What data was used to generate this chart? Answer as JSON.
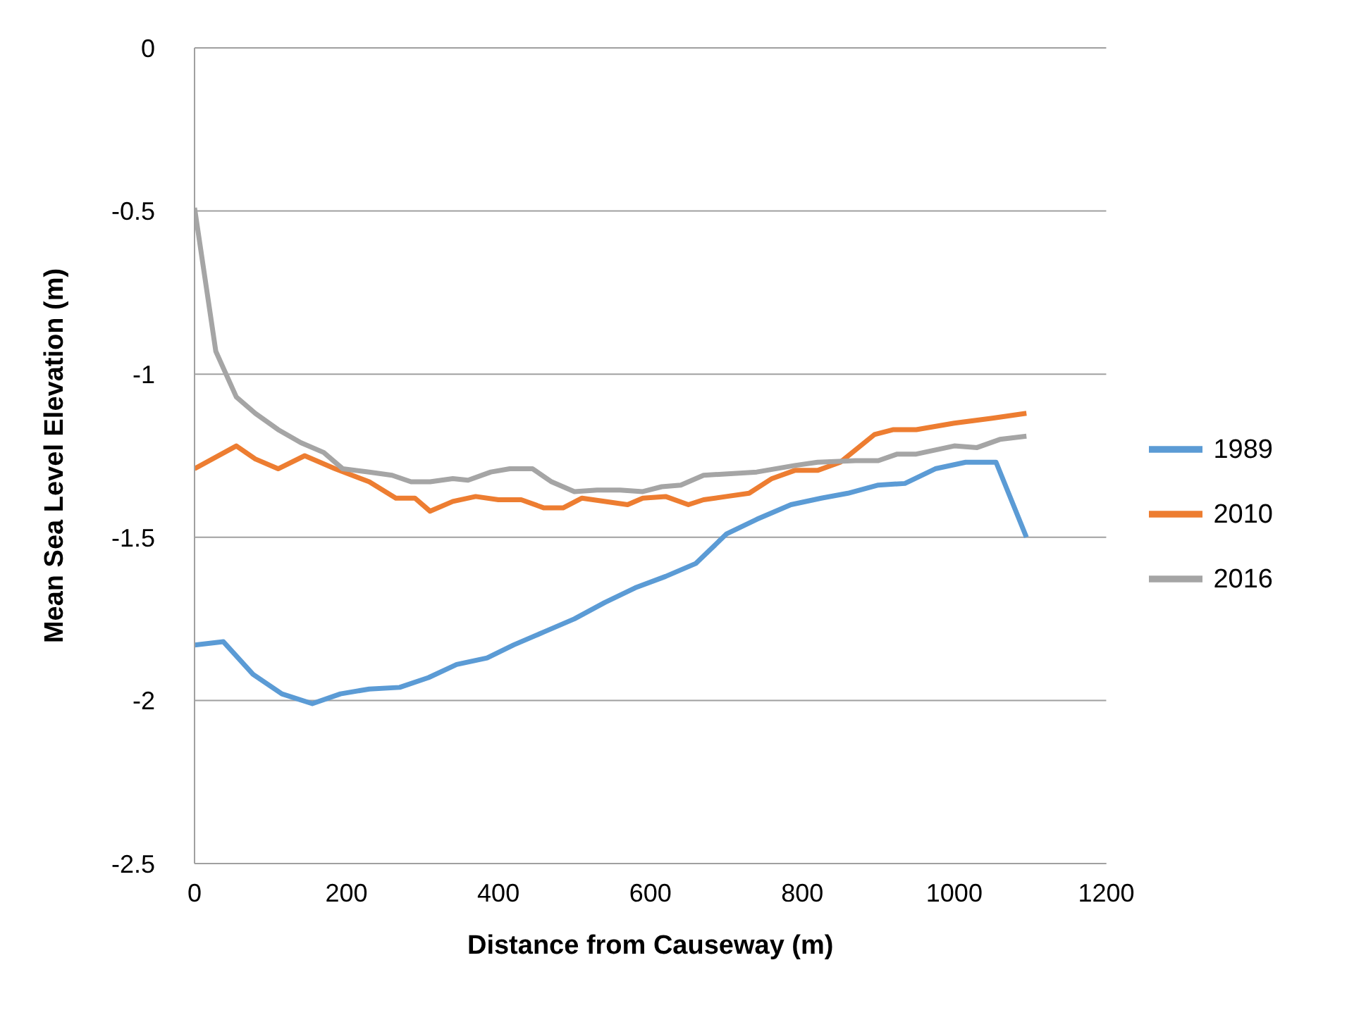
{
  "chart_data": {
    "type": "line",
    "xlabel": "Distance from Causeway (m)",
    "ylabel": "Mean Sea Level Elevation (m)",
    "xlim": [
      0,
      1200
    ],
    "xticks": [
      0,
      200,
      400,
      600,
      800,
      1000,
      1200
    ],
    "ylim": [
      -2.5,
      0
    ],
    "yticks": [
      -2.5,
      -2,
      -1.5,
      -1,
      -0.5,
      0
    ],
    "grid": "y",
    "legend": "right",
    "marker": "none",
    "line_style": "solid",
    "series": [
      {
        "name": "1989",
        "color": "#5b9bd5",
        "x": [
          0,
          38,
          77,
          115,
          155,
          192,
          230,
          270,
          308,
          345,
          385,
          420,
          460,
          500,
          540,
          580,
          620,
          660,
          700,
          740,
          785,
          825,
          860,
          900,
          935,
          975,
          1015,
          1055,
          1095
        ],
        "values": [
          -1.83,
          -1.82,
          -1.92,
          -1.98,
          -2.01,
          -1.98,
          -1.965,
          -1.96,
          -1.93,
          -1.89,
          -1.87,
          -1.83,
          -1.79,
          -1.75,
          -1.7,
          -1.655,
          -1.62,
          -1.58,
          -1.49,
          -1.445,
          -1.4,
          -1.38,
          -1.365,
          -1.34,
          -1.335,
          -1.29,
          -1.27,
          -1.27,
          -1.5
        ]
      },
      {
        "name": "2010",
        "color": "#ed7d31",
        "x": [
          0,
          55,
          80,
          110,
          145,
          185,
          230,
          265,
          290,
          310,
          340,
          370,
          400,
          430,
          460,
          485,
          510,
          570,
          590,
          620,
          650,
          670,
          700,
          730,
          760,
          790,
          820,
          850,
          895,
          920,
          950,
          1000,
          1050,
          1095
        ],
        "values": [
          -1.29,
          -1.22,
          -1.26,
          -1.29,
          -1.25,
          -1.29,
          -1.33,
          -1.38,
          -1.38,
          -1.42,
          -1.39,
          -1.375,
          -1.385,
          -1.385,
          -1.41,
          -1.41,
          -1.38,
          -1.4,
          -1.38,
          -1.375,
          -1.4,
          -1.385,
          -1.375,
          -1.365,
          -1.32,
          -1.295,
          -1.295,
          -1.27,
          -1.185,
          -1.17,
          -1.17,
          -1.15,
          -1.135,
          -1.12
        ]
      },
      {
        "name": "2016",
        "color": "#a5a5a5",
        "x": [
          0,
          28,
          55,
          80,
          110,
          140,
          170,
          195,
          230,
          260,
          285,
          310,
          340,
          360,
          390,
          415,
          445,
          470,
          500,
          530,
          560,
          590,
          615,
          640,
          670,
          740,
          790,
          820,
          870,
          900,
          925,
          950,
          1000,
          1030,
          1060,
          1095
        ],
        "values": [
          -0.49,
          -0.93,
          -1.07,
          -1.12,
          -1.17,
          -1.21,
          -1.24,
          -1.29,
          -1.3,
          -1.31,
          -1.33,
          -1.33,
          -1.32,
          -1.325,
          -1.3,
          -1.29,
          -1.29,
          -1.33,
          -1.36,
          -1.355,
          -1.355,
          -1.36,
          -1.345,
          -1.34,
          -1.31,
          -1.3,
          -1.28,
          -1.27,
          -1.265,
          -1.265,
          -1.245,
          -1.245,
          -1.22,
          -1.225,
          -1.2,
          -1.19
        ]
      }
    ]
  }
}
